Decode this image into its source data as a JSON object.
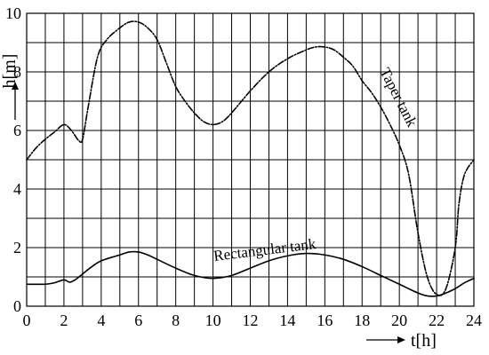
{
  "chart_data": {
    "type": "line",
    "xlabel": "t[h]",
    "ylabel": "h[m]",
    "xlim": [
      0,
      24
    ],
    "ylim": [
      0,
      10
    ],
    "x_ticks": [
      0,
      2,
      4,
      6,
      8,
      10,
      12,
      14,
      16,
      18,
      20,
      22,
      24
    ],
    "y_ticks": [
      0,
      2,
      4,
      6,
      8,
      10
    ],
    "x_tick_labels": [
      "0",
      "2",
      "4",
      "6",
      "8",
      "10",
      "12",
      "14",
      "16",
      "18",
      "20",
      "22",
      "24"
    ],
    "y_tick_labels": [
      "0",
      "2",
      "4",
      "6",
      "8",
      "10"
    ],
    "grid": true,
    "series": [
      {
        "name": "Taper tank",
        "line_style": "dash-dot",
        "x": [
          0,
          0.5,
          1,
          1.5,
          2,
          2.4,
          2.8,
          3.0,
          3.3,
          3.8,
          4.3,
          5,
          5.5,
          6,
          6.5,
          7,
          7.5,
          8,
          8.5,
          9,
          9.5,
          10,
          10.5,
          11,
          12,
          13,
          14,
          15,
          15.5,
          16,
          16.5,
          17,
          17.5,
          18,
          18.5,
          19,
          19.5,
          20,
          20.5,
          21,
          21.5,
          22,
          22.5,
          23,
          23.2,
          23.5,
          24
        ],
        "y": [
          5.0,
          5.4,
          5.7,
          5.95,
          6.2,
          6.0,
          5.65,
          5.7,
          6.8,
          8.5,
          9.1,
          9.5,
          9.7,
          9.7,
          9.5,
          9.1,
          8.3,
          7.5,
          7.0,
          6.6,
          6.3,
          6.2,
          6.3,
          6.6,
          7.35,
          8.0,
          8.45,
          8.75,
          8.85,
          8.85,
          8.75,
          8.5,
          8.2,
          7.7,
          7.3,
          6.8,
          6.2,
          5.5,
          4.5,
          2.5,
          1.0,
          0.4,
          0.6,
          2.0,
          3.5,
          4.5,
          5.0
        ]
      },
      {
        "name": "Rectangular tank",
        "line_style": "solid",
        "x": [
          0,
          1,
          1.5,
          2,
          2.3,
          2.6,
          3,
          3.5,
          4,
          5,
          5.5,
          6,
          6.5,
          7,
          8,
          9,
          10,
          11,
          12,
          13,
          14,
          15,
          16,
          17,
          18,
          19,
          20,
          21,
          21.5,
          22,
          22.5,
          23,
          23.5,
          24
        ],
        "y": [
          0.75,
          0.75,
          0.8,
          0.9,
          0.82,
          0.9,
          1.1,
          1.35,
          1.55,
          1.75,
          1.85,
          1.85,
          1.75,
          1.6,
          1.3,
          1.05,
          0.95,
          1.05,
          1.3,
          1.55,
          1.72,
          1.8,
          1.75,
          1.6,
          1.35,
          1.05,
          0.75,
          0.45,
          0.35,
          0.35,
          0.45,
          0.6,
          0.8,
          0.95
        ]
      }
    ]
  }
}
